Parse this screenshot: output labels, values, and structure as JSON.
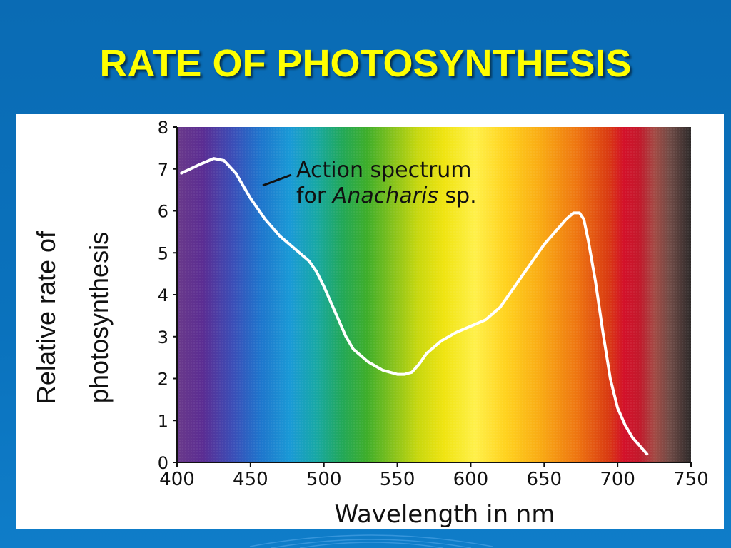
{
  "slide": {
    "title": "RATE OF PHOTOSYNTHESIS"
  },
  "colors": {
    "background": "#0a6bb4",
    "title": "#ffff00",
    "panel": "#ffffff",
    "curve": "#ffffff"
  },
  "chart_data": {
    "type": "line",
    "title": "",
    "xlabel": "Wavelength in nm",
    "ylabel_lines": [
      "Relative rate of",
      "photosynthesis"
    ],
    "xlim": [
      400,
      750
    ],
    "ylim": [
      0,
      8
    ],
    "x_ticks": [
      "400",
      "450",
      "500",
      "550",
      "600",
      "650",
      "700",
      "750"
    ],
    "y_ticks": [
      "0",
      "1",
      "2",
      "3",
      "4",
      "5",
      "6",
      "7",
      "8"
    ],
    "background": "visible light spectrum (violet to red)",
    "grid": false,
    "annotation": {
      "line1": "Action spectrum",
      "line2_prefix": "for ",
      "line2_italic": "Anacharis",
      "line2_suffix": " sp."
    },
    "series": [
      {
        "x": [
          403,
          415,
          425,
          432,
          440,
          450,
          460,
          470,
          480,
          490,
          495,
          500,
          505,
          510,
          515,
          520,
          530,
          540,
          550,
          555,
          560,
          565,
          570,
          580,
          590,
          600,
          610,
          620,
          630,
          640,
          650,
          660,
          665,
          670,
          674,
          677,
          680,
          685,
          690,
          695,
          700,
          705,
          710,
          720
        ],
        "y": [
          6.9,
          7.1,
          7.25,
          7.2,
          6.9,
          6.3,
          5.8,
          5.4,
          5.1,
          4.8,
          4.55,
          4.2,
          3.8,
          3.4,
          3.0,
          2.7,
          2.4,
          2.2,
          2.1,
          2.1,
          2.15,
          2.35,
          2.6,
          2.9,
          3.1,
          3.25,
          3.4,
          3.7,
          4.2,
          4.7,
          5.2,
          5.6,
          5.8,
          5.95,
          5.95,
          5.8,
          5.3,
          4.3,
          3.1,
          2.0,
          1.3,
          0.9,
          0.6,
          0.2
        ]
      }
    ]
  }
}
